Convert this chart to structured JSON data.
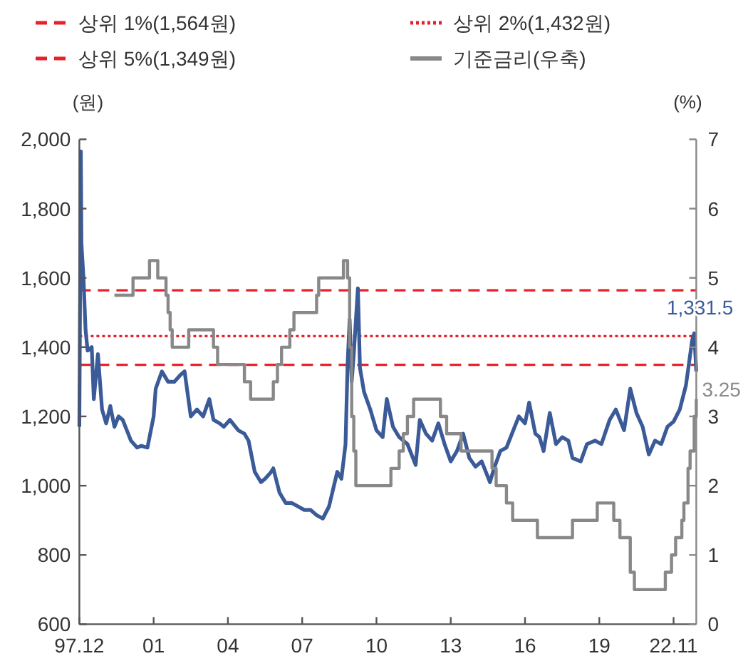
{
  "chart_data": {
    "type": "line",
    "ylabel": "(원)",
    "y2label": "(%)",
    "xlim": [
      "1997-12",
      "2022-11"
    ],
    "xticks": [
      {
        "value": "1997-12",
        "label": "97.12"
      },
      {
        "value": "2000-12",
        "label": "01"
      },
      {
        "value": "2003-12",
        "label": "04"
      },
      {
        "value": "2006-12",
        "label": "07"
      },
      {
        "value": "2009-12",
        "label": "10"
      },
      {
        "value": "2012-12",
        "label": "13"
      },
      {
        "value": "2015-12",
        "label": "16"
      },
      {
        "value": "2018-12",
        "label": "19"
      },
      {
        "value": "2021-12",
        "label": "22.11"
      }
    ],
    "ylim": [
      600,
      2000
    ],
    "yticks": [
      {
        "value": 600,
        "label": "600"
      },
      {
        "value": 800,
        "label": "800"
      },
      {
        "value": 1000,
        "label": "1,000"
      },
      {
        "value": 1200,
        "label": "1,200"
      },
      {
        "value": 1400,
        "label": "1,400"
      },
      {
        "value": 1600,
        "label": "1,600"
      },
      {
        "value": 1800,
        "label": "1,800"
      },
      {
        "value": 2000,
        "label": "2,000"
      }
    ],
    "y2lim": [
      0,
      7
    ],
    "y2ticks": [
      0,
      1,
      2,
      3,
      4,
      5,
      6,
      7
    ],
    "legend": "top",
    "ref_lines": [
      {
        "axis": "y",
        "value": 1564,
        "label": "상위 1%(1,564원)",
        "color": "#e8202a",
        "line_style": "dashed"
      },
      {
        "axis": "y",
        "value": 1432,
        "label": "상위 2%(1,432원)",
        "color": "#e8202a",
        "line_style": "dotted"
      },
      {
        "axis": "y",
        "value": 1349,
        "label": "상위 5%(1,349원)",
        "color": "#e8202a",
        "line_style": "dashed"
      }
    ],
    "annotations": [
      {
        "text": "1,331.5",
        "x": "2022-11",
        "y": 1330
      },
      "3.25"
    ],
    "series": [
      {
        "color": "#3a5a98",
        "x": [
          "1997-12-01",
          "1997-12-23",
          "1998-01",
          "1998-02",
          "1998-03",
          "1998-04",
          "1998-06",
          "1998-07",
          "1998-09",
          "1998-10",
          "1998-11",
          "1999-01",
          "1999-03",
          "1999-05",
          "1999-07",
          "1999-09",
          "1999-11",
          "2000-01",
          "2000-04",
          "2000-06",
          "2000-09",
          "2000-12",
          "2001-01",
          "2001-04",
          "2001-07",
          "2001-10",
          "2002-01",
          "2002-03",
          "2002-06",
          "2002-09",
          "2002-12",
          "2003-03",
          "2003-05",
          "2003-08",
          "2003-10",
          "2004-01",
          "2004-05",
          "2004-08",
          "2004-10",
          "2005-01",
          "2005-04",
          "2005-06",
          "2005-09",
          "2005-10",
          "2006-01",
          "2006-04",
          "2006-07",
          "2006-10",
          "2007-01",
          "2007-04",
          "2007-07",
          "2007-10",
          "2008-01",
          "2008-03",
          "2008-05",
          "2008-07",
          "2008-09",
          "2008-10",
          "2008-11",
          "2008-12",
          "2009-01",
          "2009-03",
          "2009-04",
          "2009-06",
          "2009-09",
          "2009-12",
          "2010-03",
          "2010-05",
          "2010-08",
          "2010-11",
          "2011-03",
          "2011-07",
          "2011-09",
          "2011-12",
          "2012-03",
          "2012-06",
          "2012-09",
          "2012-12",
          "2013-03",
          "2013-06",
          "2013-09",
          "2013-12",
          "2014-03",
          "2014-07",
          "2014-09",
          "2014-12",
          "2015-03",
          "2015-07",
          "2015-09",
          "2015-12",
          "2016-02",
          "2016-05",
          "2016-07",
          "2016-09",
          "2016-12",
          "2017-03",
          "2017-06",
          "2017-09",
          "2017-11",
          "2018-03",
          "2018-06",
          "2018-10",
          "2019-01",
          "2019-05",
          "2019-08",
          "2019-12",
          "2020-03",
          "2020-06",
          "2020-09",
          "2020-12",
          "2021-03",
          "2021-06",
          "2021-09",
          "2021-12",
          "2022-03",
          "2022-06",
          "2022-09",
          "2022-10",
          "2022-11"
        ],
        "values": [
          1170,
          1965,
          1700,
          1600,
          1450,
          1390,
          1400,
          1250,
          1380,
          1300,
          1220,
          1180,
          1230,
          1170,
          1200,
          1190,
          1160,
          1130,
          1110,
          1115,
          1110,
          1200,
          1280,
          1330,
          1300,
          1300,
          1320,
          1330,
          1200,
          1220,
          1200,
          1250,
          1190,
          1180,
          1170,
          1190,
          1160,
          1150,
          1130,
          1040,
          1010,
          1020,
          1040,
          1050,
          980,
          950,
          950,
          940,
          930,
          930,
          915,
          905,
          940,
          990,
          1040,
          1020,
          1120,
          1350,
          1480,
          1300,
          1380,
          1570,
          1340,
          1270,
          1220,
          1160,
          1140,
          1250,
          1170,
          1140,
          1120,
          1060,
          1190,
          1150,
          1130,
          1180,
          1120,
          1070,
          1100,
          1150,
          1080,
          1055,
          1070,
          1010,
          1050,
          1100,
          1110,
          1170,
          1200,
          1180,
          1240,
          1150,
          1140,
          1100,
          1210,
          1120,
          1140,
          1130,
          1080,
          1070,
          1120,
          1130,
          1120,
          1190,
          1220,
          1160,
          1280,
          1210,
          1170,
          1090,
          1130,
          1120,
          1170,
          1185,
          1220,
          1290,
          1420,
          1440,
          1330
        ]
      },
      {
        "type": "step",
        "name": "기준금리(우축)",
        "color": "#888888",
        "axis": "y2",
        "x": [
          "1999-05",
          "2000-02",
          "2000-10",
          "2001-02",
          "2001-06",
          "2001-07",
          "2001-08",
          "2001-09",
          "2002-05",
          "2003-05",
          "2003-07",
          "2004-08",
          "2004-11",
          "2005-10",
          "2005-12",
          "2006-02",
          "2006-06",
          "2006-08",
          "2007-07",
          "2007-08",
          "2008-08",
          "2008-10",
          "2008-11",
          "2008-12",
          "2009-01",
          "2009-02",
          "2010-07",
          "2010-11",
          "2011-01",
          "2011-03",
          "2011-06",
          "2012-07",
          "2012-10",
          "2013-05",
          "2014-08",
          "2014-10",
          "2015-03",
          "2015-06",
          "2016-06",
          "2017-11",
          "2018-11",
          "2019-07",
          "2019-10",
          "2020-03",
          "2020-05",
          "2021-08",
          "2021-11",
          "2022-01",
          "2022-04",
          "2022-05",
          "2022-07",
          "2022-08",
          "2022-10",
          "2022-11"
        ],
        "values": [
          4.75,
          5.0,
          5.25,
          5.0,
          4.75,
          4.5,
          4.25,
          4.0,
          4.25,
          4.0,
          3.75,
          3.5,
          3.25,
          3.5,
          3.75,
          4.0,
          4.25,
          4.5,
          4.75,
          5.0,
          5.25,
          5.0,
          4.0,
          3.0,
          2.5,
          2.0,
          2.25,
          2.5,
          2.75,
          3.0,
          3.25,
          3.0,
          2.75,
          2.5,
          2.25,
          2.0,
          1.75,
          1.5,
          1.25,
          1.5,
          1.75,
          1.5,
          1.25,
          0.75,
          0.5,
          0.75,
          1.0,
          1.25,
          1.5,
          1.75,
          2.25,
          2.5,
          3.0,
          3.25
        ]
      }
    ]
  }
}
